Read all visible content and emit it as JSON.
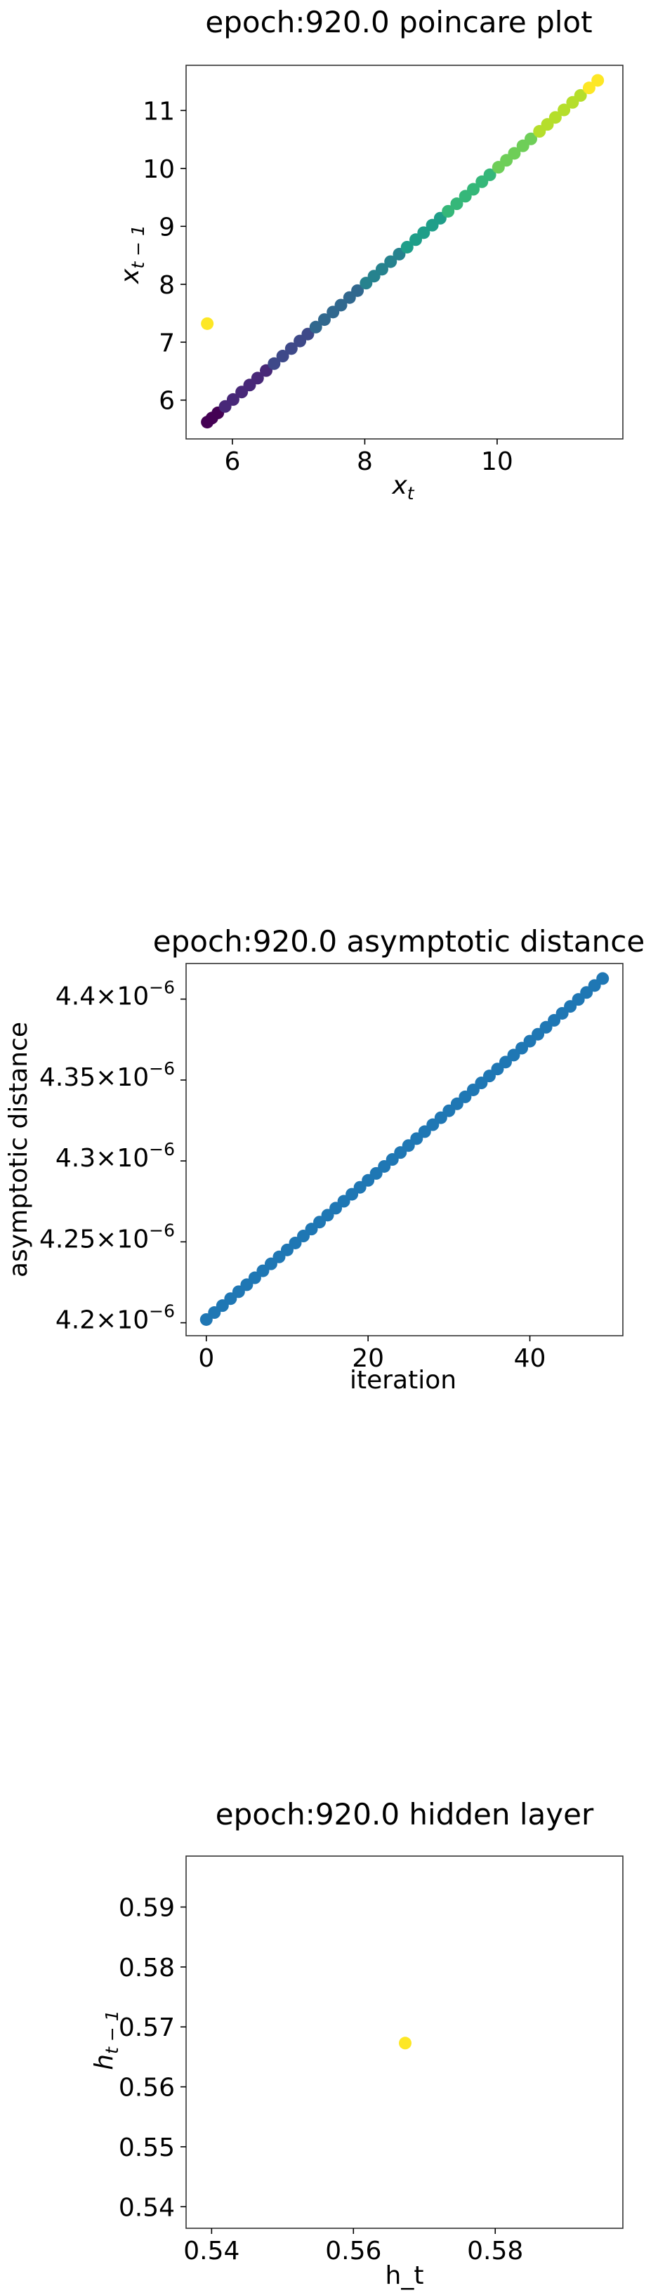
{
  "chart_data": [
    {
      "type": "scatter",
      "title": "epoch:920.0 poincare plot",
      "xlabel": "x",
      "xlabel_sub": "t",
      "ylabel": "x",
      "ylabel_sub": "t − 1",
      "xlim": [
        5.3,
        11.9
      ],
      "ylim": [
        5.33,
        11.78
      ],
      "xticks": [
        6,
        8,
        10
      ],
      "yticks": [
        6,
        7,
        8,
        9,
        10,
        11
      ],
      "colormap": "viridis",
      "colors": [
        "#440154",
        "#482878",
        "#3e4989",
        "#31688e",
        "#26828e",
        "#1f9e89",
        "#35b779",
        "#6ece58",
        "#b5de2b",
        "#fde725"
      ],
      "series": [
        {
          "x": [
            5.62,
            5.69,
            5.78,
            5.89,
            6.01,
            6.14,
            6.26,
            6.38,
            6.51,
            6.63,
            6.76,
            6.89,
            7.02,
            7.14,
            7.26,
            7.39,
            7.52,
            7.64,
            7.77,
            7.89,
            8.02,
            8.14,
            8.26,
            8.39,
            8.52,
            8.64,
            8.77,
            8.89,
            9.02,
            9.14,
            9.26,
            9.39,
            9.52,
            9.64,
            9.77,
            9.89,
            10.02,
            10.14,
            10.26,
            10.39,
            10.51,
            10.64,
            10.76,
            10.88,
            11.01,
            11.14,
            11.26,
            11.39,
            11.52,
            5.62
          ],
          "y": [
            5.62,
            5.69,
            5.78,
            5.89,
            6.01,
            6.14,
            6.26,
            6.38,
            6.51,
            6.63,
            6.76,
            6.89,
            7.02,
            7.14,
            7.26,
            7.39,
            7.52,
            7.64,
            7.77,
            7.89,
            8.02,
            8.14,
            8.26,
            8.39,
            8.52,
            8.64,
            8.77,
            8.89,
            9.02,
            9.14,
            9.26,
            9.39,
            9.52,
            9.64,
            9.77,
            9.89,
            10.02,
            10.14,
            10.26,
            10.39,
            10.51,
            10.64,
            10.76,
            10.88,
            11.01,
            11.14,
            11.26,
            11.39,
            11.52,
            7.32
          ]
        }
      ]
    },
    {
      "type": "scatter",
      "title": "epoch:920.0 asymptotic distance",
      "xlabel": "iteration",
      "ylabel": "asymptotic distance",
      "xlim": [
        -2.5,
        51.5
      ],
      "ylim": [
        4.192,
        4.422
      ],
      "ytick_exponent": "−6",
      "xticks": [
        0,
        20,
        40
      ],
      "yticks": [
        4.2,
        4.25,
        4.3,
        4.35,
        4.4
      ],
      "ytick_labels": [
        "4.2",
        "4.25",
        "4.3",
        "4.35",
        "4.4"
      ],
      "colors": [
        "#1f77b4"
      ],
      "series": [
        {
          "x": [
            0,
            1,
            2,
            3,
            4,
            5,
            6,
            7,
            8,
            9,
            10,
            11,
            12,
            13,
            14,
            15,
            16,
            17,
            18,
            19,
            20,
            21,
            22,
            23,
            24,
            25,
            26,
            27,
            28,
            29,
            30,
            31,
            32,
            33,
            34,
            35,
            36,
            37,
            38,
            39,
            40,
            41,
            42,
            43,
            44,
            45,
            46,
            47,
            48,
            49
          ],
          "y": [
            4.202,
            4.2063,
            4.2106,
            4.2149,
            4.2192,
            4.2235,
            4.2278,
            4.2321,
            4.2364,
            4.2407,
            4.245,
            4.2493,
            4.2536,
            4.2579,
            4.2622,
            4.2665,
            4.2708,
            4.2751,
            4.2794,
            4.2837,
            4.288,
            4.2923,
            4.2966,
            4.3009,
            4.3052,
            4.3095,
            4.3138,
            4.3181,
            4.3224,
            4.3267,
            4.331,
            4.3353,
            4.3396,
            4.3439,
            4.3482,
            4.3525,
            4.3568,
            4.3611,
            4.3654,
            4.3697,
            4.374,
            4.3783,
            4.3826,
            4.3869,
            4.3912,
            4.3955,
            4.3998,
            4.4041,
            4.4084,
            4.4127
          ]
        }
      ]
    },
    {
      "type": "scatter",
      "title": "epoch:920.0 hidden layer",
      "xlabel": "h_t",
      "ylabel": "h",
      "ylabel_sub": "t − 1",
      "xlim": [
        0.5364,
        0.598
      ],
      "ylim": [
        0.5364,
        0.5985
      ],
      "xticks": [
        0.54,
        0.56,
        0.58
      ],
      "yticks": [
        0.54,
        0.55,
        0.56,
        0.57,
        0.58,
        0.59
      ],
      "colors": [
        "#fde725"
      ],
      "series": [
        {
          "x": [
            0.5673
          ],
          "y": [
            0.5673
          ]
        }
      ]
    }
  ]
}
